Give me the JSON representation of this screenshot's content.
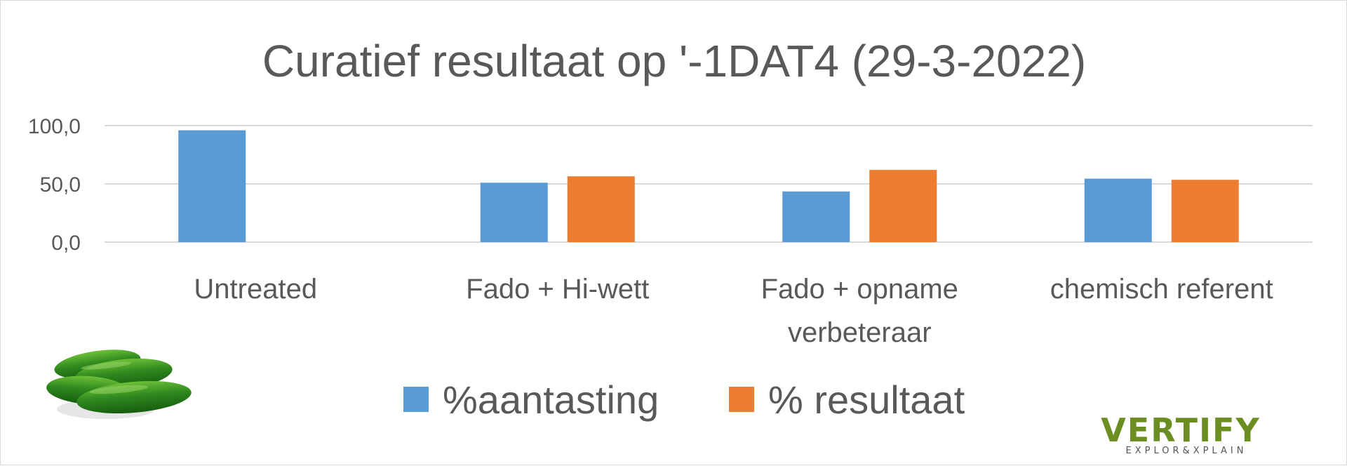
{
  "chart_data": {
    "type": "bar",
    "title": "Curatief resultaat op '-1DAT4 (29-3-2022)",
    "categories": [
      [
        "Untreated"
      ],
      [
        "Fado + Hi-wett"
      ],
      [
        "Fado + opname",
        "verbeteraar"
      ],
      [
        "chemisch referent"
      ]
    ],
    "series": [
      {
        "name": "%aantasting",
        "color": "#5b9bd5",
        "values": [
          96,
          51,
          43.5,
          54.5
        ]
      },
      {
        "name": "% resultaat",
        "color": "#ed7d31",
        "values": [
          null,
          56.5,
          62,
          53.5
        ]
      }
    ],
    "ylim": [
      0,
      100
    ],
    "yticks": [
      {
        "value": 0,
        "label": "0,0"
      },
      {
        "value": 50,
        "label": "50,0"
      },
      {
        "value": 100,
        "label": "100,0"
      }
    ],
    "grid": true,
    "legend_position": "bottom"
  },
  "decor": {
    "cucumber_icon": "cucumber-image",
    "logo_text": "VERTIFY",
    "logo_tagline": "EXPLOR&XPLAIN",
    "logo_color": "#6b8e23"
  }
}
